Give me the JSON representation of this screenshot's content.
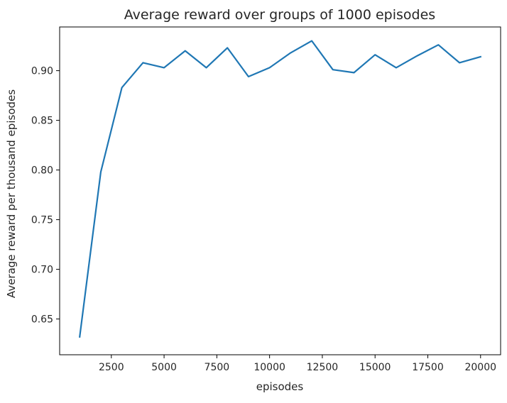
{
  "chart_data": {
    "type": "line",
    "title": "Average reward over groups of 1000 episodes",
    "xlabel": "episodes",
    "ylabel": "Average reward per thousand episodes",
    "xlim": [
      50,
      20950
    ],
    "ylim": [
      0.614,
      0.944
    ],
    "xticks": [
      2500,
      5000,
      7500,
      10000,
      12500,
      15000,
      17500,
      20000
    ],
    "yticks": [
      0.65,
      0.7,
      0.75,
      0.8,
      0.85,
      0.9
    ],
    "grid": false,
    "legend": "none",
    "line_color": "#1f77b4",
    "series": [
      {
        "x": [
          1000,
          2000,
          3000,
          4000,
          5000,
          6000,
          7000,
          8000,
          9000,
          10000,
          11000,
          12000,
          13000,
          14000,
          15000,
          16000,
          17000,
          18000,
          19000,
          20000
        ],
        "y": [
          0.632,
          0.798,
          0.883,
          0.908,
          0.903,
          0.92,
          0.903,
          0.923,
          0.894,
          0.903,
          0.918,
          0.93,
          0.901,
          0.898,
          0.916,
          0.903,
          0.915,
          0.926,
          0.908,
          0.914
        ]
      }
    ]
  }
}
